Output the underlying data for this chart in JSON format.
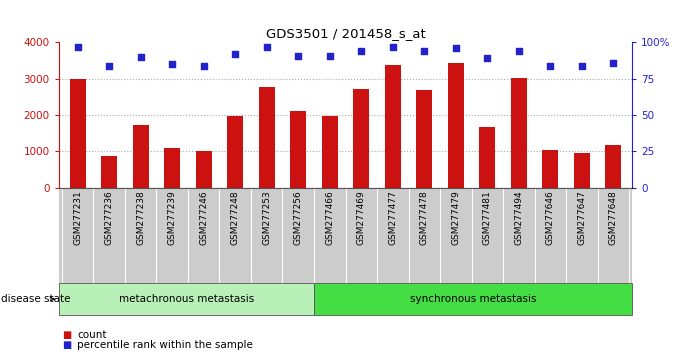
{
  "title": "GDS3501 / 201458_s_at",
  "samples": [
    "GSM277231",
    "GSM277236",
    "GSM277238",
    "GSM277239",
    "GSM277246",
    "GSM277248",
    "GSM277253",
    "GSM277256",
    "GSM277466",
    "GSM277469",
    "GSM277477",
    "GSM277478",
    "GSM277479",
    "GSM277481",
    "GSM277494",
    "GSM277646",
    "GSM277647",
    "GSM277648"
  ],
  "counts": [
    3000,
    870,
    1730,
    1100,
    1000,
    1970,
    2780,
    2120,
    1980,
    2730,
    3390,
    2690,
    3440,
    1680,
    3010,
    1030,
    960,
    1170
  ],
  "percentiles": [
    97,
    84,
    90,
    85,
    84,
    92,
    97,
    91,
    91,
    94,
    97,
    94,
    96,
    89,
    94,
    84,
    84,
    86
  ],
  "metachronous_count": 8,
  "synchronous_count": 10,
  "bar_color": "#cc1111",
  "dot_color": "#2222cc",
  "group1_label": "metachronous metastasis",
  "group2_label": "synchronous metastasis",
  "group1_color": "#b8f0b8",
  "group2_color": "#44dd44",
  "ylim_left": [
    0,
    4000
  ],
  "ylim_right": [
    0,
    100
  ],
  "yticks_left": [
    0,
    1000,
    2000,
    3000,
    4000
  ],
  "yticks_right": [
    0,
    25,
    50,
    75,
    100
  ],
  "legend_count_label": "count",
  "legend_pct_label": "percentile rank within the sample",
  "disease_state_label": "disease state",
  "background_color": "#ffffff",
  "tick_label_color_left": "#cc1111",
  "tick_label_color_right": "#2222cc",
  "bar_width": 0.5,
  "tick_bg_color": "#cccccc"
}
